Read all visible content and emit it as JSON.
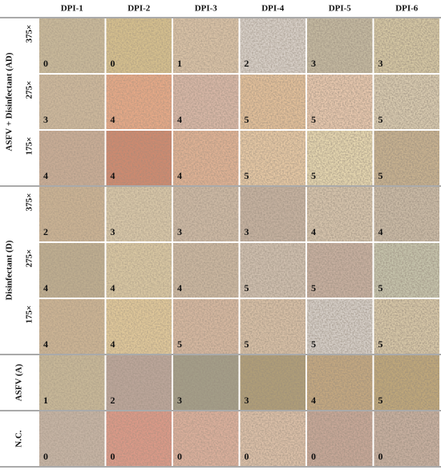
{
  "columns": [
    "DPI-1",
    "DPI-2",
    "DPI-3",
    "DPI-4",
    "DPI-5",
    "DPI-6"
  ],
  "groups": [
    {
      "label": "ASFV + Disinfectant (AD)",
      "rows": [
        {
          "magnification": "375×",
          "scores": [
            0,
            0,
            1,
            2,
            3,
            3
          ]
        },
        {
          "magnification": "275×",
          "scores": [
            3,
            4,
            4,
            5,
            5,
            5
          ]
        },
        {
          "magnification": "175×",
          "scores": [
            4,
            4,
            4,
            5,
            5,
            5
          ]
        }
      ]
    },
    {
      "label": "Disinfectant (D)",
      "rows": [
        {
          "magnification": "375×",
          "scores": [
            2,
            3,
            3,
            3,
            4,
            4
          ]
        },
        {
          "magnification": "275×",
          "scores": [
            4,
            4,
            4,
            5,
            5,
            5
          ]
        },
        {
          "magnification": "175×",
          "scores": [
            4,
            4,
            5,
            5,
            5,
            5
          ]
        }
      ]
    },
    {
      "label": "ASFV (A)",
      "rows": [
        {
          "scores": [
            1,
            2,
            3,
            3,
            4,
            5
          ]
        }
      ]
    },
    {
      "label": "N.C.",
      "rows": [
        {
          "scores": [
            0,
            0,
            0,
            0,
            0,
            0
          ]
        }
      ]
    }
  ]
}
